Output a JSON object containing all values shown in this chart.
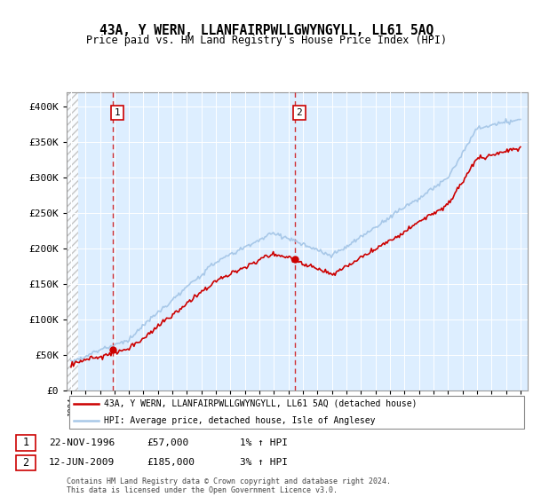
{
  "title": "43A, Y WERN, LLANFAIRPWLLGWYNGYLL, LL61 5AQ",
  "subtitle": "Price paid vs. HM Land Registry's House Price Index (HPI)",
  "ylim": [
    0,
    420000
  ],
  "yticks": [
    0,
    50000,
    100000,
    150000,
    200000,
    250000,
    300000,
    350000,
    400000
  ],
  "sale1_date": 1996.9,
  "sale1_price": 57000,
  "sale2_date": 2009.45,
  "sale2_price": 185000,
  "sale1_date_str": "22-NOV-1996",
  "sale1_price_str": "£57,000",
  "sale1_hpi_str": "1% ↑ HPI",
  "sale2_date_str": "12-JUN-2009",
  "sale2_price_str": "£185,000",
  "sale2_hpi_str": "3% ↑ HPI",
  "hpi_color": "#a8c8e8",
  "sale_color": "#cc0000",
  "bg_fill_color": "#ddeeff",
  "legend_label1": "43A, Y WERN, LLANFAIRPWLLGWYNGYLL, LL61 5AQ (detached house)",
  "legend_label2": "HPI: Average price, detached house, Isle of Anglesey",
  "footer": "Contains HM Land Registry data © Crown copyright and database right 2024.\nThis data is licensed under the Open Government Licence v3.0.",
  "grid_color": "#cccccc",
  "xmin": 1994,
  "xmax": 2025
}
